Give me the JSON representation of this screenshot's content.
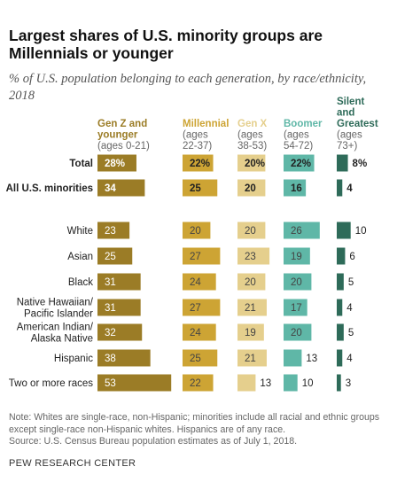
{
  "header": {
    "title": "Largest shares of U.S. minority groups are Millennials or younger",
    "subtitle": "% of U.S. population belonging to each generation, by race/ethnicity, 2018"
  },
  "footer": {
    "note": "Note: Whites are single-race, non-Hispanic; minorities include all racial and ethnic groups except single-race non-Hispanic whites. Hispanics are of any race.",
    "source": "Source: U.S. Census Bureau population estimates as of July 1, 2018.",
    "org": "PEW RESEARCH CENTER"
  },
  "chart_data": {
    "type": "bar",
    "categories": [
      "Total",
      "All U.S. minorities",
      "White",
      "Asian",
      "Black",
      "Native Hawaiian/ Pacific Islander",
      "American Indian/ Alaska Native",
      "Hispanic",
      "Two or more races"
    ],
    "category_lines": [
      [
        "Total"
      ],
      [
        "All U.S. minorities"
      ],
      [
        "White"
      ],
      [
        "Asian"
      ],
      [
        "Black"
      ],
      [
        "Native Hawaiian/",
        "Pacific Islander"
      ],
      [
        "American Indian/",
        "Alaska Native"
      ],
      [
        "Hispanic"
      ],
      [
        "Two or more races"
      ]
    ],
    "value_labels": [
      [
        "28%",
        "22%",
        "20%",
        "22%",
        "8%"
      ],
      [
        "34",
        "25",
        "20",
        "16",
        "4"
      ],
      [
        "23",
        "20",
        "20",
        "26",
        "10"
      ],
      [
        "25",
        "27",
        "23",
        "19",
        "6"
      ],
      [
        "31",
        "24",
        "20",
        "20",
        "5"
      ],
      [
        "31",
        "27",
        "21",
        "17",
        "4"
      ],
      [
        "32",
        "24",
        "19",
        "20",
        "5"
      ],
      [
        "38",
        "25",
        "21",
        "13",
        "4"
      ],
      [
        "53",
        "22",
        "13",
        "10",
        "3"
      ]
    ],
    "series": [
      {
        "name": "Gen Z and younger",
        "name_lines": [
          "Gen Z and",
          "younger"
        ],
        "ages": "(ages 0-21)",
        "age_lines": [
          "(ages 0-21)"
        ],
        "color": "#9b7c26",
        "values": [
          28,
          34,
          23,
          25,
          31,
          31,
          32,
          38,
          53
        ]
      },
      {
        "name": "Millennial",
        "name_lines": [
          "Millennial"
        ],
        "ages": "(ages 22-37)",
        "age_lines": [
          "(ages",
          "22-37)"
        ],
        "color": "#cda434",
        "values": [
          22,
          25,
          20,
          27,
          24,
          27,
          24,
          25,
          22
        ]
      },
      {
        "name": "Gen X",
        "name_lines": [
          "Gen X"
        ],
        "ages": "(ages 38-53)",
        "age_lines": [
          "(ages",
          "38-53)"
        ],
        "color": "#e5cf8d",
        "values": [
          20,
          20,
          20,
          23,
          20,
          21,
          19,
          21,
          13
        ]
      },
      {
        "name": "Boomer",
        "name_lines": [
          "Boomer"
        ],
        "ages": "(ages 54-72)",
        "age_lines": [
          "(ages",
          "54-72)"
        ],
        "color": "#5fb7a7",
        "values": [
          22,
          16,
          26,
          19,
          20,
          17,
          20,
          13,
          10
        ]
      },
      {
        "name": "Silent and Greatest",
        "name_lines": [
          "Silent",
          "and",
          "Greatest"
        ],
        "ages": "(ages 73+)",
        "age_lines": [
          "(ages",
          "73+)"
        ],
        "color": "#2e6b59",
        "values": [
          8,
          4,
          10,
          6,
          5,
          4,
          5,
          4,
          3
        ]
      }
    ],
    "bold_rows": [
      0,
      1
    ]
  }
}
